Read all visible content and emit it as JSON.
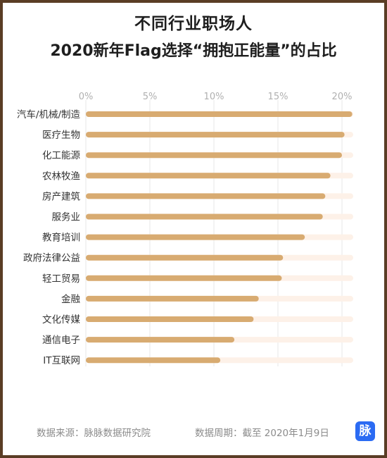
{
  "header": {
    "title_line1": "不同行业职场人",
    "title_line2": "2020新年Flag选择“拥抱正能量”的占比"
  },
  "footer": {
    "source": "数据来源：脉脉数据研究院",
    "period": "数据周期：截至 2020年1月9日",
    "logo_text": "脉"
  },
  "colors": {
    "bar": "#d8ab71",
    "track": "#fdf1e8",
    "grid": "#e7e7e7",
    "tick": "#b0b0b0",
    "label": "#333333"
  },
  "chart_data": {
    "type": "bar",
    "orientation": "horizontal",
    "categories": [
      "汽车/机械/制造",
      "医疗生物",
      "化工能源",
      "农林牧渔",
      "房产建筑",
      "服务业",
      "教育培训",
      "政府法律公益",
      "轻工贸易",
      "金融",
      "文化传媒",
      "通信电子",
      "IT互联网"
    ],
    "values": [
      20.8,
      20.2,
      20.0,
      19.1,
      18.7,
      18.5,
      17.1,
      15.4,
      15.3,
      13.5,
      13.1,
      11.6,
      10.5
    ],
    "xlim": [
      0,
      21
    ],
    "xticks": [
      "0%",
      "5%",
      "10%",
      "15%",
      "20%"
    ],
    "tick_values": [
      0,
      5,
      10,
      15,
      20
    ],
    "grid": true
  }
}
